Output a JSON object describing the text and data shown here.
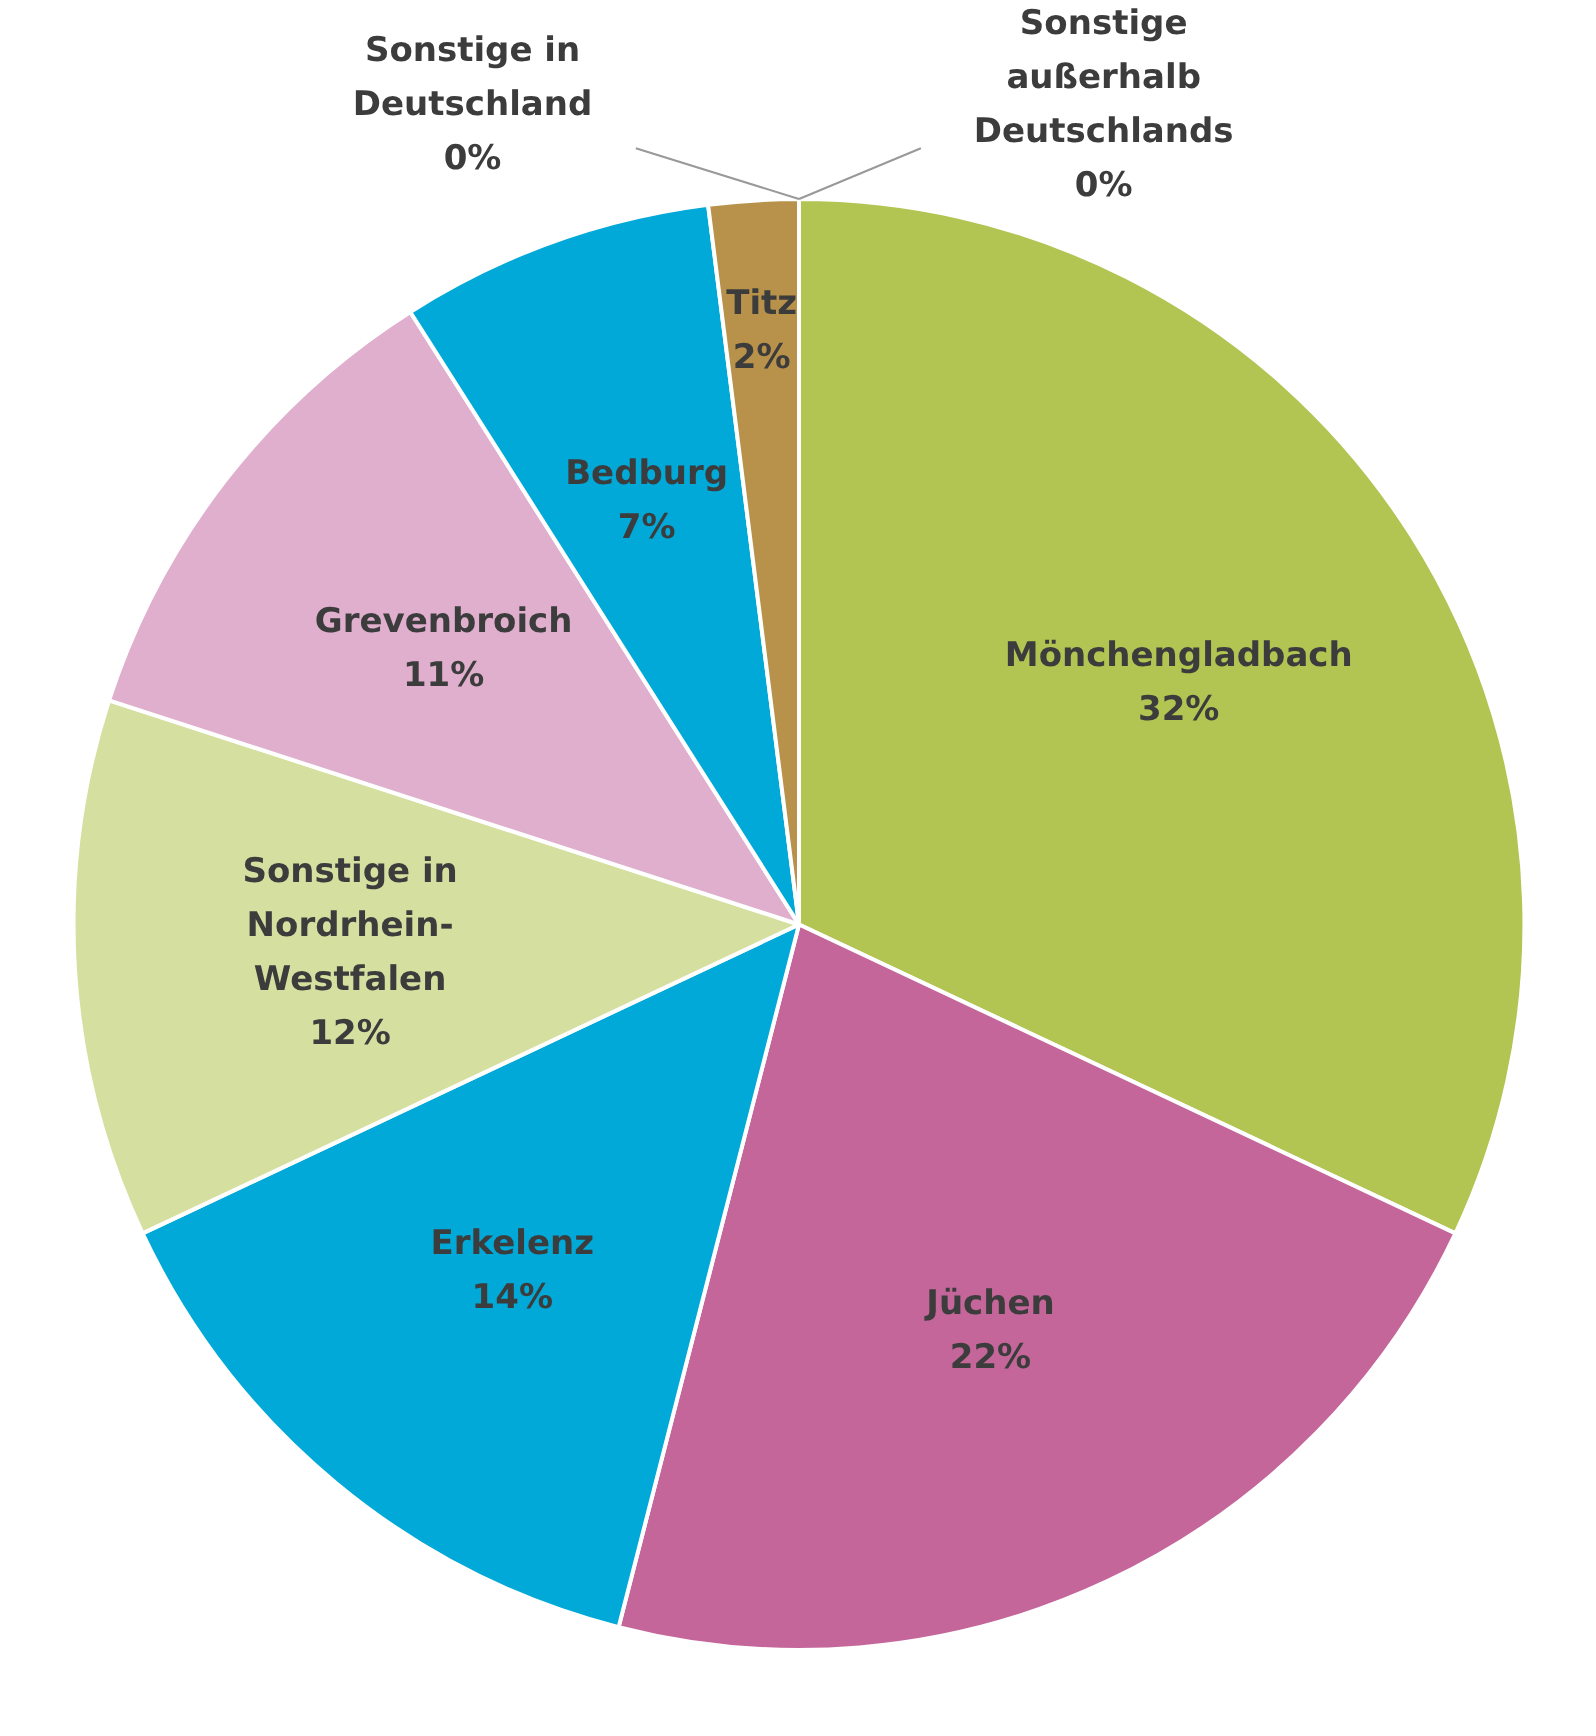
{
  "chart_data": {
    "type": "pie",
    "categories": [
      "Mönchengladbach",
      "Jüchen",
      "Erkelenz",
      "Sonstige in Nordrhein-Westfalen",
      "Grevenbroich",
      "Bedburg",
      "Titz",
      "Sonstige in Deutschland",
      "Sonstige außerhalb Deutschlands"
    ],
    "values": [
      32,
      22,
      14,
      12,
      11,
      7,
      2,
      0,
      0
    ],
    "colors": [
      "#b2c451",
      "#c4669a",
      "#00a9d8",
      "#d5e0a0",
      "#dfafcd",
      "#00a9d8",
      "#b8914a",
      "#e3cfa9",
      "#cccccc"
    ],
    "value_labels": [
      "32%",
      "22%",
      "14%",
      "12%",
      "11%",
      "7%",
      "2%",
      "0%",
      "0%"
    ]
  }
}
